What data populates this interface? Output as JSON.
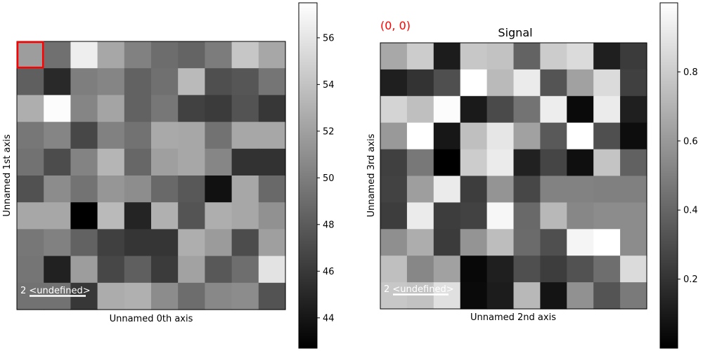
{
  "chart_data": [
    {
      "type": "heatmap",
      "title": "",
      "xlabel": "Unnamed 0th axis",
      "ylabel": "Unnamed 1st axis",
      "scalebar_label": "2 <undefined>",
      "colorbar": {
        "min": 42.7,
        "max": 57.5,
        "ticks": [
          44,
          46,
          48,
          50,
          52,
          54,
          56
        ]
      },
      "cmap": "gray",
      "selection": {
        "col": 0,
        "row": 0,
        "color": "#ff0000"
      },
      "values": [
        [
          51.8,
          49.2,
          56.5,
          52.4,
          50.2,
          49.0,
          48.5,
          49.9,
          54.2,
          52.4
        ],
        [
          48.2,
          45.1,
          50.0,
          50.4,
          48.4,
          49.2,
          53.5,
          47.3,
          47.7,
          49.5
        ],
        [
          52.8,
          57.3,
          50.4,
          52.2,
          48.4,
          49.6,
          46.5,
          46.1,
          47.5,
          45.9
        ],
        [
          49.6,
          50.4,
          46.8,
          50.2,
          49.3,
          52.5,
          52.4,
          49.3,
          52.4,
          52.4
        ],
        [
          49.3,
          47.1,
          50.3,
          53.2,
          48.7,
          51.9,
          52.4,
          50.5,
          45.6,
          45.6
        ],
        [
          47.4,
          50.8,
          49.4,
          51.4,
          50.9,
          48.8,
          47.8,
          43.7,
          52.4,
          48.8
        ],
        [
          52.4,
          52.4,
          42.7,
          53.5,
          44.8,
          52.9,
          47.6,
          52.8,
          52.4,
          51.1
        ],
        [
          49.6,
          50.2,
          48.4,
          46.4,
          45.8,
          45.8,
          52.8,
          51.7,
          47.1,
          51.9
        ],
        [
          49.5,
          44.6,
          51.8,
          46.8,
          48.2,
          46.1,
          52.1,
          47.8,
          49.1,
          55.9
        ],
        [
          49.3,
          49.3,
          45.9,
          52.7,
          52.9,
          50.8,
          49.0,
          50.6,
          50.8,
          47.5
        ]
      ]
    },
    {
      "type": "heatmap",
      "title": "Signal",
      "xlabel": "Unnamed 2nd axis",
      "ylabel": "Unnamed 3rd axis",
      "scalebar_label": "2 <undefined>",
      "annotation": {
        "text": "(0, 0)",
        "color": "#ff0000"
      },
      "colorbar": {
        "min": 0.0,
        "max": 1.0,
        "ticks": [
          0.2,
          0.4,
          0.6,
          0.8
        ]
      },
      "cmap": "gray",
      "values": [
        [
          0.66,
          0.8,
          0.11,
          0.78,
          0.76,
          0.39,
          0.8,
          0.86,
          0.12,
          0.23
        ],
        [
          0.12,
          0.2,
          0.31,
          1.0,
          0.73,
          0.92,
          0.33,
          0.63,
          0.86,
          0.25
        ],
        [
          0.83,
          0.75,
          0.99,
          0.1,
          0.29,
          0.45,
          0.93,
          0.04,
          0.92,
          0.12
        ],
        [
          0.6,
          1.0,
          0.09,
          0.75,
          0.9,
          0.63,
          0.35,
          1.0,
          0.31,
          0.05
        ],
        [
          0.25,
          0.47,
          0.0,
          0.8,
          0.92,
          0.13,
          0.27,
          0.06,
          0.77,
          0.38
        ],
        [
          0.26,
          0.62,
          0.92,
          0.24,
          0.58,
          0.28,
          0.51,
          0.51,
          0.5,
          0.5
        ],
        [
          0.24,
          0.92,
          0.24,
          0.26,
          0.97,
          0.41,
          0.72,
          0.53,
          0.55,
          0.55
        ],
        [
          0.56,
          0.68,
          0.23,
          0.58,
          0.74,
          0.42,
          0.31,
          0.96,
          1.0,
          0.55
        ],
        [
          0.75,
          0.53,
          0.63,
          0.03,
          0.12,
          0.31,
          0.24,
          0.32,
          0.43,
          0.86
        ],
        [
          0.78,
          0.76,
          0.88,
          0.04,
          0.11,
          0.72,
          0.08,
          0.57,
          0.33,
          0.48
        ]
      ]
    }
  ]
}
